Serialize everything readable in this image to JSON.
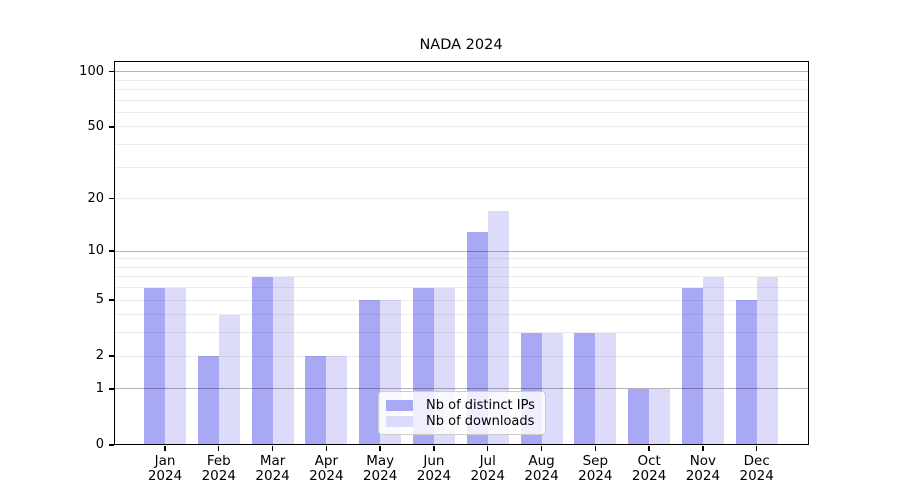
{
  "chart_data": {
    "type": "bar",
    "title": "NADA 2024",
    "categories_month": [
      "Jan",
      "Feb",
      "Mar",
      "Apr",
      "May",
      "Jun",
      "Jul",
      "Aug",
      "Sep",
      "Oct",
      "Nov",
      "Dec"
    ],
    "categories_year": "2024",
    "series": [
      {
        "name": "Nb of distinct IPs",
        "color": "#a8a8f5",
        "values": [
          6,
          2,
          7,
          2,
          5,
          6,
          13,
          3,
          3,
          1,
          6,
          5
        ]
      },
      {
        "name": "Nb of downloads",
        "color": "#dcdcfa",
        "values": [
          6,
          4,
          7,
          2,
          5,
          6,
          17,
          3,
          3,
          1,
          7,
          7
        ]
      }
    ],
    "xlabel": "",
    "ylabel": "",
    "y_axis": {
      "scale": "log1p",
      "min": 0,
      "max": 115,
      "labeled_ticks": [
        0,
        1,
        2,
        5,
        10,
        20,
        50,
        100
      ],
      "major_gridlines": [
        1,
        10,
        100
      ],
      "minor_gridlines": [
        2,
        3,
        4,
        5,
        6,
        7,
        8,
        9,
        20,
        30,
        40,
        50,
        60,
        70,
        80,
        90
      ]
    },
    "grid": true,
    "legend_position": "lower-center"
  },
  "colors": {
    "background": "#ffffff",
    "axis": "#000000",
    "text": "#000000",
    "major_grid": "rgba(0,0,0,0.29)",
    "minor_grid": "rgba(0,0,0,0.075)",
    "legend_border": "#cccccc",
    "legend_background": "rgba(255,255,255,0.8)"
  }
}
